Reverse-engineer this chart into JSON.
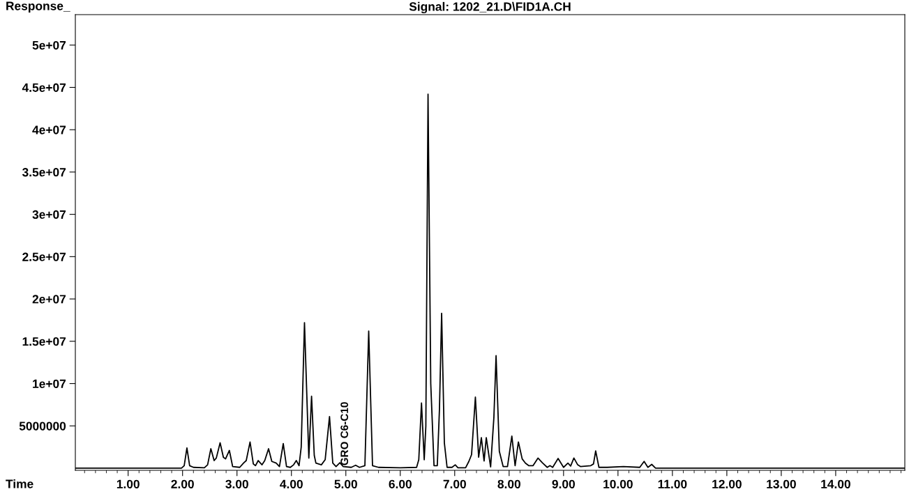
{
  "chart_data": {
    "type": "line",
    "title": "Signal: 1202_21.D\\FID1A.CH",
    "xlabel": "Time",
    "ylabel": "Response_",
    "x": [
      0.03,
      1.98,
      2.03,
      2.08,
      2.13,
      2.2,
      2.4,
      2.46,
      2.52,
      2.58,
      2.62,
      2.69,
      2.75,
      2.79,
      2.86,
      2.92,
      3.05,
      3.12,
      3.17,
      3.24,
      3.3,
      3.34,
      3.39,
      3.46,
      3.51,
      3.58,
      3.64,
      3.72,
      3.78,
      3.85,
      3.91,
      3.98,
      4.04,
      4.09,
      4.14,
      4.18,
      4.24,
      4.32,
      4.37,
      4.42,
      4.45,
      4.55,
      4.62,
      4.7,
      4.76,
      4.82,
      4.89,
      4.95,
      5.1,
      5.18,
      5.25,
      5.35,
      5.42,
      5.49,
      5.6,
      6.0,
      6.3,
      6.34,
      6.39,
      6.44,
      6.47,
      6.51,
      6.56,
      6.62,
      6.68,
      6.72,
      6.76,
      6.81,
      6.86,
      6.95,
      7.01,
      7.06,
      7.2,
      7.26,
      7.31,
      7.38,
      7.44,
      7.49,
      7.54,
      7.58,
      7.66,
      7.72,
      7.76,
      7.82,
      7.89,
      7.97,
      8.05,
      8.11,
      8.17,
      8.24,
      8.3,
      8.36,
      8.44,
      8.53,
      8.61,
      8.7,
      8.75,
      8.8,
      8.9,
      9.0,
      9.08,
      9.13,
      9.19,
      9.26,
      9.31,
      9.5,
      9.55,
      9.59,
      9.65,
      9.8,
      10.1,
      10.4,
      10.48,
      10.55,
      10.62,
      10.69,
      15.27
    ],
    "series": [
      {
        "color": "#000000",
        "values": [
          0,
          0,
          300000,
          2400000,
          300000,
          100000,
          50000,
          400000,
          2300000,
          900000,
          1200000,
          3000000,
          1300000,
          1100000,
          2100000,
          200000,
          100000,
          600000,
          900000,
          3100000,
          500000,
          300000,
          900000,
          400000,
          900000,
          2300000,
          800000,
          600000,
          200000,
          2900000,
          200000,
          100000,
          400000,
          900000,
          300000,
          2500000,
          17200000,
          1200000,
          8500000,
          1500000,
          600000,
          400000,
          1000000,
          6100000,
          600000,
          200000,
          650000,
          200000,
          100000,
          350000,
          100000,
          300000,
          16200000,
          300000,
          100000,
          50000,
          100000,
          1000000,
          7700000,
          1000000,
          5000000,
          44200000,
          10000000,
          300000,
          300000,
          7000000,
          18300000,
          3000000,
          100000,
          100000,
          400000,
          50000,
          50000,
          800000,
          1600000,
          8400000,
          1300000,
          3600000,
          850000,
          3600000,
          150000,
          6000000,
          13300000,
          2000000,
          200000,
          200000,
          3800000,
          300000,
          3100000,
          1100000,
          600000,
          300000,
          300000,
          1200000,
          650000,
          100000,
          300000,
          100000,
          1150000,
          100000,
          600000,
          250000,
          1200000,
          400000,
          200000,
          300000,
          500000,
          2050000,
          100000,
          100000,
          200000,
          100000,
          800000,
          100000,
          450000,
          0,
          0
        ]
      }
    ],
    "annotations": [
      {
        "text": "GRO C6-C10",
        "x": 4.99,
        "y": 300000
      }
    ],
    "xlim": [
      0.03,
      15.27
    ],
    "ylim": [
      -250000,
      53600000
    ],
    "xticks": [
      {
        "value": 0.2,
        "label": null
      },
      {
        "value": 0.4,
        "label": null
      },
      {
        "value": 0.6,
        "label": null
      },
      {
        "value": 0.8,
        "label": null
      },
      {
        "value": 1,
        "label": "1.00"
      },
      {
        "value": 1.2,
        "label": null
      },
      {
        "value": 1.4,
        "label": null
      },
      {
        "value": 1.6,
        "label": null
      },
      {
        "value": 1.8,
        "label": null
      },
      {
        "value": 2,
        "label": "2.00"
      },
      {
        "value": 2.2,
        "label": null
      },
      {
        "value": 2.4,
        "label": null
      },
      {
        "value": 2.6,
        "label": null
      },
      {
        "value": 2.8,
        "label": null
      },
      {
        "value": 3,
        "label": "3.00"
      },
      {
        "value": 3.2,
        "label": null
      },
      {
        "value": 3.4,
        "label": null
      },
      {
        "value": 3.6,
        "label": null
      },
      {
        "value": 3.8,
        "label": null
      },
      {
        "value": 4,
        "label": "4.00"
      },
      {
        "value": 4.2,
        "label": null
      },
      {
        "value": 4.4,
        "label": null
      },
      {
        "value": 4.6,
        "label": null
      },
      {
        "value": 4.8,
        "label": null
      },
      {
        "value": 5,
        "label": "5.00"
      },
      {
        "value": 5.2,
        "label": null
      },
      {
        "value": 5.4,
        "label": null
      },
      {
        "value": 5.6,
        "label": null
      },
      {
        "value": 5.8,
        "label": null
      },
      {
        "value": 6,
        "label": "6.00"
      },
      {
        "value": 6.2,
        "label": null
      },
      {
        "value": 6.4,
        "label": null
      },
      {
        "value": 6.6,
        "label": null
      },
      {
        "value": 6.8,
        "label": null
      },
      {
        "value": 7,
        "label": "7.00"
      },
      {
        "value": 7.2,
        "label": null
      },
      {
        "value": 7.4,
        "label": null
      },
      {
        "value": 7.6,
        "label": null
      },
      {
        "value": 7.8,
        "label": null
      },
      {
        "value": 8,
        "label": "8.00"
      },
      {
        "value": 8.2,
        "label": null
      },
      {
        "value": 8.4,
        "label": null
      },
      {
        "value": 8.6,
        "label": null
      },
      {
        "value": 8.8,
        "label": null
      },
      {
        "value": 9,
        "label": "9.00"
      },
      {
        "value": 9.2,
        "label": null
      },
      {
        "value": 9.4,
        "label": null
      },
      {
        "value": 9.6,
        "label": null
      },
      {
        "value": 9.8,
        "label": null
      },
      {
        "value": 10,
        "label": "10.00"
      },
      {
        "value": 10.2,
        "label": null
      },
      {
        "value": 10.4,
        "label": null
      },
      {
        "value": 10.6,
        "label": null
      },
      {
        "value": 10.8,
        "label": null
      },
      {
        "value": 11,
        "label": "11.00"
      },
      {
        "value": 11.2,
        "label": null
      },
      {
        "value": 11.4,
        "label": null
      },
      {
        "value": 11.6,
        "label": null
      },
      {
        "value": 11.8,
        "label": null
      },
      {
        "value": 12,
        "label": "12.00"
      },
      {
        "value": 12.2,
        "label": null
      },
      {
        "value": 12.4,
        "label": null
      },
      {
        "value": 12.6,
        "label": null
      },
      {
        "value": 12.8,
        "label": null
      },
      {
        "value": 13,
        "label": "13.00"
      },
      {
        "value": 13.2,
        "label": null
      },
      {
        "value": 13.4,
        "label": null
      },
      {
        "value": 13.6,
        "label": null
      },
      {
        "value": 13.8,
        "label": null
      },
      {
        "value": 14,
        "label": "14.00"
      },
      {
        "value": 14.2,
        "label": null
      },
      {
        "value": 14.4,
        "label": null
      },
      {
        "value": 14.6,
        "label": null
      },
      {
        "value": 14.8,
        "label": null
      },
      {
        "value": 15,
        "label": null
      },
      {
        "value": 15.2,
        "label": null
      }
    ],
    "yticks": [
      {
        "value": 5000000,
        "label": "5000000"
      },
      {
        "value": 10000000,
        "label": "1e+07"
      },
      {
        "value": 15000000,
        "label": "1.5e+07"
      },
      {
        "value": 20000000,
        "label": "2e+07"
      },
      {
        "value": 25000000,
        "label": "2.5e+07"
      },
      {
        "value": 30000000,
        "label": "3e+07"
      },
      {
        "value": 35000000,
        "label": "3.5e+07"
      },
      {
        "value": 40000000,
        "label": "4e+07"
      },
      {
        "value": 45000000,
        "label": "4.5e+07"
      },
      {
        "value": 50000000,
        "label": "5e+07"
      }
    ],
    "grid": false,
    "legend": false,
    "marker": "none",
    "line_style": "solid"
  }
}
